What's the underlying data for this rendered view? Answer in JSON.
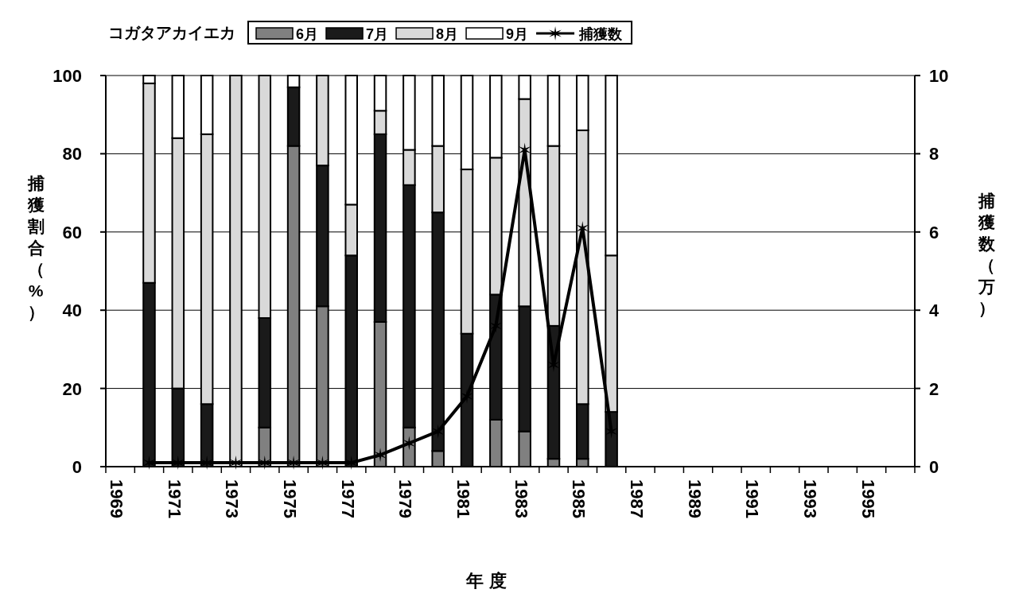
{
  "chart_data": {
    "type": "bar",
    "title": "コガタアカイエカ",
    "xlabel": "年 度",
    "ylabel": "捕獲割合（%）",
    "y2label": "捕獲数（万）",
    "categories": [
      "1969",
      null,
      "1971",
      null,
      "1973",
      null,
      "1975",
      null,
      "1977",
      null,
      "1979",
      null,
      "1981",
      null,
      "1983",
      null,
      "1985",
      null,
      "1987",
      null,
      "1989",
      null,
      "1991",
      null,
      "1993",
      null,
      "1995",
      null
    ],
    "stacked": true,
    "ylim": [
      0,
      100
    ],
    "yticks": [
      0,
      20,
      40,
      60,
      80,
      100
    ],
    "y2lim": [
      0,
      10
    ],
    "y2ticks": [
      0,
      2,
      4,
      6,
      8,
      10
    ],
    "grid": "y",
    "legend": "top",
    "series": [
      {
        "name": "6月",
        "color": "#808080",
        "values": [
          null,
          0,
          0,
          0,
          0,
          10,
          82,
          41,
          0,
          37,
          10,
          4,
          0,
          12,
          9,
          2,
          2,
          null,
          null,
          null,
          null,
          null,
          null,
          null,
          null,
          null,
          null,
          null
        ]
      },
      {
        "name": "7月",
        "color": "#1a1a1a",
        "values": [
          null,
          47,
          20,
          16,
          0,
          28,
          15,
          36,
          54,
          48,
          62,
          61,
          34,
          32,
          32,
          34,
          14,
          14,
          null,
          null,
          null,
          null,
          null,
          null,
          null,
          null,
          null,
          null
        ]
      },
      {
        "name": "8月",
        "color": "#d9d9d9",
        "values": [
          null,
          51,
          64,
          69,
          100,
          62,
          0,
          23,
          13,
          6,
          9,
          17,
          42,
          35,
          53,
          46,
          70,
          40,
          null,
          null,
          null,
          null,
          null,
          null,
          null,
          null,
          null,
          null
        ]
      },
      {
        "name": "9月",
        "color": "#ffffff",
        "values": [
          null,
          2,
          16,
          15,
          0,
          0,
          3,
          0,
          33,
          9,
          19,
          18,
          24,
          21,
          6,
          18,
          14,
          46,
          null,
          null,
          null,
          null,
          null,
          null,
          null,
          null,
          null,
          null
        ]
      },
      {
        "name": "捕獲数",
        "type": "line",
        "axis": "y2",
        "color": "#000000",
        "marker": "cross",
        "values": [
          null,
          0.1,
          0.1,
          0.1,
          0.1,
          0.1,
          0.1,
          0.1,
          0.1,
          0.3,
          0.6,
          0.9,
          1.8,
          3.6,
          8.1,
          2.6,
          6.1,
          0.9,
          null,
          null,
          null,
          null,
          null,
          null,
          null,
          null,
          null,
          null
        ]
      }
    ]
  }
}
